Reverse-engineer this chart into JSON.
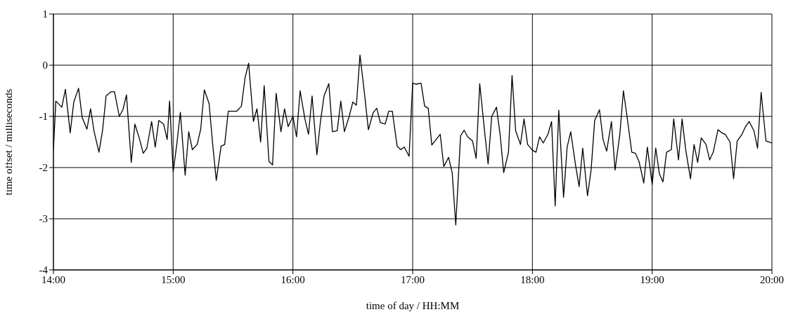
{
  "chart_data": {
    "type": "line",
    "xlabel": "time of day / HH:MM",
    "ylabel": "time offset / milliseconds",
    "xlim": [
      14,
      20
    ],
    "ylim": [
      -4,
      1
    ],
    "xticks": [
      {
        "value": 14,
        "label": "14:00"
      },
      {
        "value": 15,
        "label": "15:00"
      },
      {
        "value": 16,
        "label": "16:00"
      },
      {
        "value": 17,
        "label": "17:00"
      },
      {
        "value": 18,
        "label": "18:00"
      },
      {
        "value": 19,
        "label": "19:00"
      },
      {
        "value": 20,
        "label": "20:00"
      }
    ],
    "yticks": [
      -4,
      -3,
      -2,
      -1,
      0,
      1
    ],
    "grid": true,
    "marker": "none",
    "line_style": "solid",
    "series": [
      {
        "color": "#000000",
        "x": [
          14.0,
          14.02,
          14.07,
          14.1,
          14.14,
          14.17,
          14.21,
          14.24,
          14.28,
          14.31,
          14.34,
          14.38,
          14.41,
          14.44,
          14.48,
          14.51,
          14.55,
          14.58,
          14.61,
          14.65,
          14.68,
          14.72,
          14.75,
          14.78,
          14.82,
          14.85,
          14.88,
          14.92,
          14.95,
          14.97,
          15.0,
          15.03,
          15.06,
          15.1,
          15.13,
          15.16,
          15.2,
          15.23,
          15.26,
          15.3,
          15.33,
          15.36,
          15.4,
          15.43,
          15.46,
          15.5,
          15.53,
          15.57,
          15.6,
          15.63,
          15.67,
          15.7,
          15.73,
          15.76,
          15.8,
          15.83,
          15.86,
          15.9,
          15.93,
          15.96,
          16.0,
          16.03,
          16.06,
          16.1,
          16.13,
          16.16,
          16.2,
          16.23,
          16.26,
          16.3,
          16.33,
          16.37,
          16.4,
          16.43,
          16.47,
          16.5,
          16.53,
          16.56,
          16.6,
          16.63,
          16.67,
          16.7,
          16.73,
          16.77,
          16.8,
          16.83,
          16.87,
          16.9,
          16.93,
          16.97,
          17.0,
          17.03,
          17.07,
          17.1,
          17.13,
          17.16,
          17.2,
          17.23,
          17.26,
          17.3,
          17.33,
          17.36,
          17.4,
          17.43,
          17.46,
          17.5,
          17.53,
          17.56,
          17.6,
          17.63,
          17.66,
          17.7,
          17.73,
          17.76,
          17.8,
          17.83,
          17.86,
          17.9,
          17.93,
          17.96,
          18.0,
          18.03,
          18.06,
          18.09,
          18.13,
          18.16,
          18.19,
          18.22,
          18.26,
          18.29,
          18.32,
          18.36,
          18.39,
          18.42,
          18.46,
          18.49,
          18.52,
          18.56,
          18.59,
          18.62,
          18.66,
          18.69,
          18.73,
          18.76,
          18.79,
          18.83,
          18.86,
          18.89,
          18.93,
          18.96,
          19.0,
          19.03,
          19.06,
          19.09,
          19.12,
          19.16,
          19.18,
          19.22,
          19.25,
          19.28,
          19.32,
          19.35,
          19.38,
          19.41,
          19.45,
          19.48,
          19.51,
          19.55,
          19.58,
          19.61,
          19.65,
          19.68,
          19.71,
          19.75,
          19.78,
          19.81,
          19.85,
          19.88,
          19.91,
          19.95,
          20.0
        ],
        "values": [
          -1.65,
          -0.7,
          -0.82,
          -0.47,
          -1.32,
          -0.72,
          -0.45,
          -1.02,
          -1.25,
          -0.85,
          -1.3,
          -1.7,
          -1.28,
          -0.6,
          -0.52,
          -0.52,
          -1.0,
          -0.87,
          -0.58,
          -1.9,
          -1.15,
          -1.45,
          -1.72,
          -1.62,
          -1.1,
          -1.6,
          -1.08,
          -1.15,
          -1.45,
          -0.7,
          -2.08,
          -1.55,
          -0.92,
          -2.15,
          -1.3,
          -1.65,
          -1.55,
          -1.25,
          -0.48,
          -0.75,
          -1.55,
          -2.25,
          -1.58,
          -1.55,
          -0.9,
          -0.9,
          -0.9,
          -0.8,
          -0.25,
          0.04,
          -1.1,
          -0.85,
          -1.5,
          -0.4,
          -1.88,
          -1.95,
          -0.55,
          -1.3,
          -0.85,
          -1.2,
          -1.0,
          -1.4,
          -0.5,
          -1.05,
          -1.35,
          -0.6,
          -1.75,
          -1.1,
          -0.6,
          -0.36,
          -1.3,
          -1.28,
          -0.7,
          -1.3,
          -1.0,
          -0.72,
          -0.78,
          0.2,
          -0.6,
          -1.26,
          -0.93,
          -0.84,
          -1.12,
          -1.15,
          -0.9,
          -0.9,
          -1.58,
          -1.65,
          -1.6,
          -1.78,
          -0.35,
          -0.37,
          -0.35,
          -0.8,
          -0.84,
          -1.56,
          -1.44,
          -1.35,
          -1.98,
          -1.8,
          -2.1,
          -3.12,
          -1.38,
          -1.27,
          -1.4,
          -1.48,
          -1.82,
          -0.36,
          -1.28,
          -1.93,
          -1.0,
          -0.82,
          -1.35,
          -2.1,
          -1.7,
          -0.2,
          -1.28,
          -1.55,
          -1.05,
          -1.55,
          -1.66,
          -1.7,
          -1.4,
          -1.52,
          -1.35,
          -1.1,
          -2.75,
          -0.88,
          -2.58,
          -1.6,
          -1.3,
          -1.95,
          -2.37,
          -1.62,
          -2.55,
          -2.05,
          -1.08,
          -0.87,
          -1.45,
          -1.68,
          -1.1,
          -2.05,
          -1.35,
          -0.5,
          -1.0,
          -1.7,
          -1.72,
          -1.88,
          -2.3,
          -1.6,
          -2.33,
          -1.62,
          -2.12,
          -2.28,
          -1.7,
          -1.65,
          -1.05,
          -1.85,
          -1.05,
          -1.65,
          -2.22,
          -1.55,
          -1.9,
          -1.42,
          -1.55,
          -1.85,
          -1.7,
          -1.26,
          -1.32,
          -1.35,
          -1.5,
          -2.22,
          -1.48,
          -1.35,
          -1.2,
          -1.1,
          -1.28,
          -1.62,
          -0.53,
          -1.48,
          -1.52
        ]
      }
    ]
  }
}
